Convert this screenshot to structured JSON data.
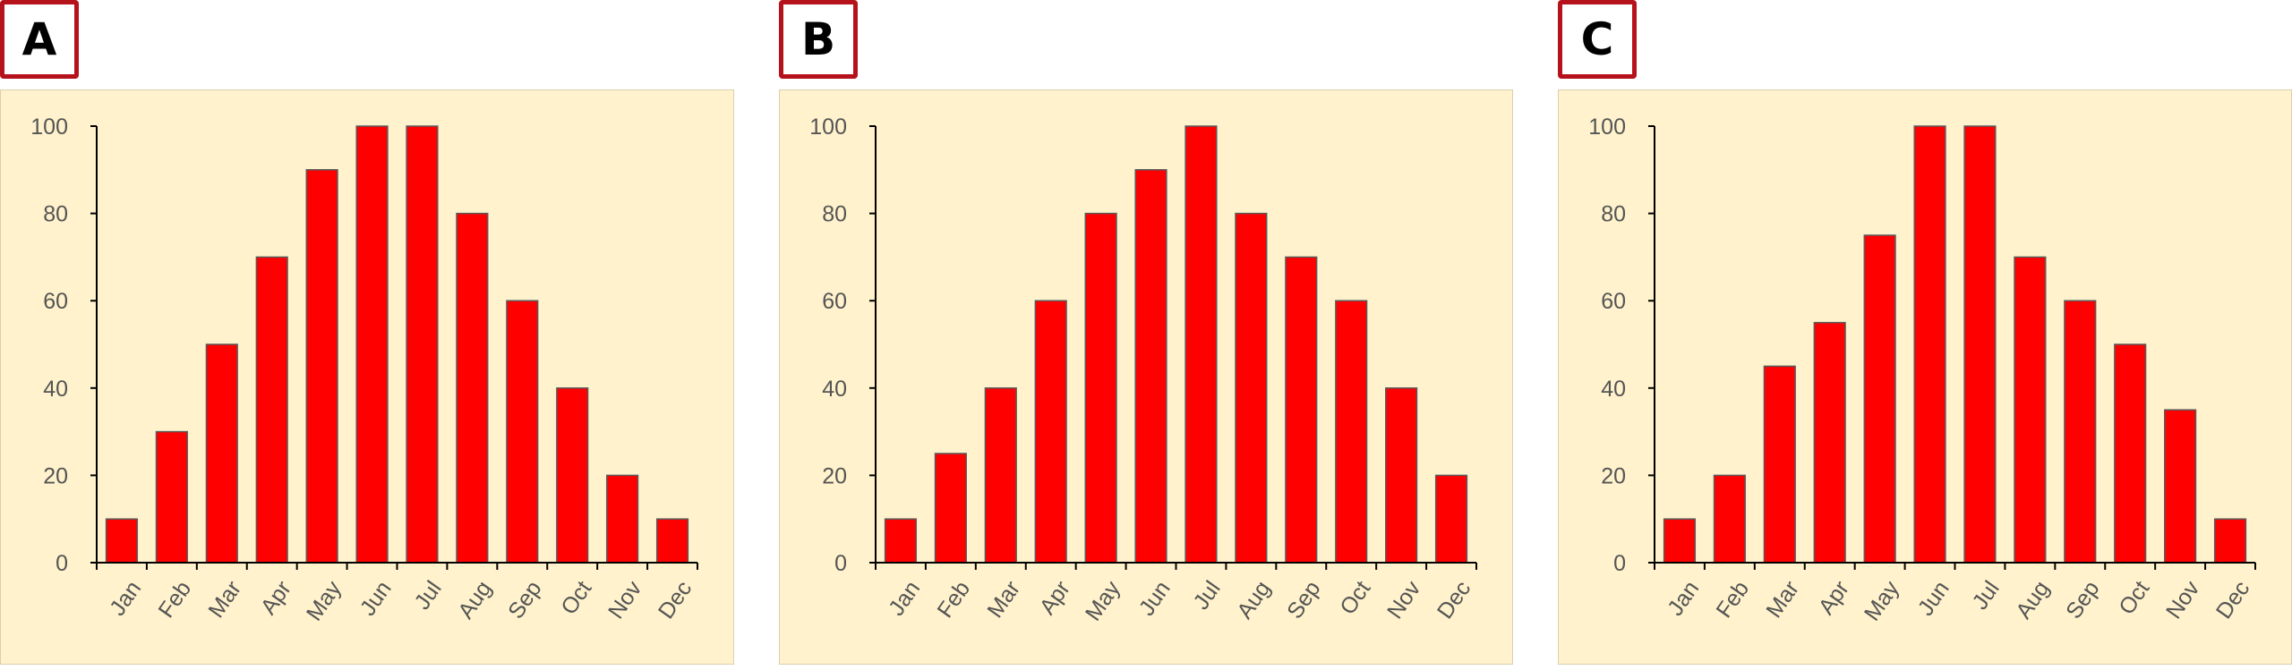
{
  "chart_data": [
    {
      "panel_label": "A",
      "type": "bar",
      "categories": [
        "Jan",
        "Feb",
        "Mar",
        "Apr",
        "May",
        "Jun",
        "Jul",
        "Aug",
        "Sep",
        "Oct",
        "Nov",
        "Dec"
      ],
      "values": [
        10,
        30,
        50,
        70,
        90,
        100,
        100,
        80,
        60,
        40,
        20,
        10
      ],
      "ylim": [
        0,
        100
      ],
      "yticks": [
        0,
        20,
        40,
        60,
        80,
        100
      ],
      "bar_color": "#ff0000",
      "grid": false
    },
    {
      "panel_label": "B",
      "type": "bar",
      "categories": [
        "Jan",
        "Feb",
        "Mar",
        "Apr",
        "May",
        "Jun",
        "Jul",
        "Aug",
        "Sep",
        "Oct",
        "Nov",
        "Dec"
      ],
      "values": [
        10,
        25,
        40,
        60,
        80,
        90,
        100,
        80,
        70,
        60,
        40,
        20
      ],
      "ylim": [
        0,
        100
      ],
      "yticks": [
        0,
        20,
        40,
        60,
        80,
        100
      ],
      "bar_color": "#ff0000",
      "grid": false
    },
    {
      "panel_label": "C",
      "type": "bar",
      "categories": [
        "Jan",
        "Feb",
        "Mar",
        "Apr",
        "May",
        "Jun",
        "Jul",
        "Aug",
        "Sep",
        "Oct",
        "Nov",
        "Dec"
      ],
      "values": [
        10,
        20,
        45,
        55,
        75,
        100,
        100,
        70,
        60,
        50,
        35,
        10
      ],
      "ylim": [
        0,
        100
      ],
      "yticks": [
        0,
        20,
        40,
        60,
        80,
        100
      ],
      "bar_color": "#ff0000",
      "grid": false
    }
  ],
  "colors": {
    "plot_background": "#fff2cc",
    "badge_border": "#b5121b",
    "bar_fill": "#ff0000",
    "bar_outline": "#595959"
  }
}
